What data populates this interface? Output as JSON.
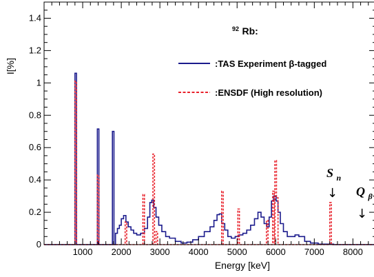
{
  "chart_data": {
    "type": "line",
    "xlabel": "Energy [keV]",
    "ylabel": "I[%]",
    "xlim": [
      0,
      8600
    ],
    "ylim": [
      0,
      1.5
    ],
    "x_ticks": [
      1000,
      2000,
      3000,
      4000,
      5000,
      6000,
      7000,
      8000
    ],
    "y_ticks": [
      0,
      0.2,
      0.4,
      0.6,
      0.8,
      1,
      1.2,
      1.4
    ],
    "x_tick_labels": [
      "1000",
      "2000",
      "3000",
      "4000",
      "5000",
      "6000",
      "7000",
      "8000"
    ],
    "y_tick_labels": [
      "0",
      "0.2",
      "0.4",
      "0.6",
      "0.8",
      "1",
      "1.2",
      "1.4"
    ],
    "legend": {
      "header_mass": "92",
      "header_element": "Rb:",
      "entries": [
        {
          "label": ":TAS Experiment β-tagged",
          "color": "#1a1a8c",
          "style": "solid"
        },
        {
          "label": ":ENSDF (High resolution)",
          "color": "#e8202a",
          "style": "dashed"
        }
      ]
    },
    "annotations": [
      {
        "text": "S",
        "sub": "n",
        "x": 7390
      },
      {
        "text": "Q",
        "sub": "β",
        "x": 8150
      }
    ],
    "series": [
      {
        "name": ":TAS Experiment β-tagged",
        "color": "#1a1a8c",
        "bin_width": 40,
        "points": [
          [
            0,
            0
          ],
          [
            760,
            0
          ],
          [
            800,
            1.06
          ],
          [
            840,
            0
          ],
          [
            1330,
            0
          ],
          [
            1380,
            0.715
          ],
          [
            1420,
            0
          ],
          [
            1720,
            0
          ],
          [
            1770,
            0.7
          ],
          [
            1810,
            0
          ],
          [
            1850,
            0.07
          ],
          [
            1900,
            0.1
          ],
          [
            1950,
            0.12
          ],
          [
            2000,
            0.16
          ],
          [
            2060,
            0.18
          ],
          [
            2120,
            0.14
          ],
          [
            2180,
            0.11
          ],
          [
            2250,
            0.09
          ],
          [
            2320,
            0.07
          ],
          [
            2400,
            0.06
          ],
          [
            2500,
            0.07
          ],
          [
            2600,
            0.1
          ],
          [
            2680,
            0.17
          ],
          [
            2740,
            0.26
          ],
          [
            2790,
            0.275
          ],
          [
            2840,
            0.23
          ],
          [
            2900,
            0.17
          ],
          [
            2970,
            0.12
          ],
          [
            3050,
            0.08
          ],
          [
            3150,
            0.05
          ],
          [
            3250,
            0.04
          ],
          [
            3400,
            0.02
          ],
          [
            3550,
            0.01
          ],
          [
            3700,
            0.015
          ],
          [
            3850,
            0.03
          ],
          [
            4000,
            0.05
          ],
          [
            4150,
            0.08
          ],
          [
            4300,
            0.11
          ],
          [
            4400,
            0.15
          ],
          [
            4480,
            0.185
          ],
          [
            4540,
            0.19
          ],
          [
            4600,
            0.13
          ],
          [
            4680,
            0.09
          ],
          [
            4760,
            0.05
          ],
          [
            4850,
            0.04
          ],
          [
            4950,
            0.05
          ],
          [
            5050,
            0.06
          ],
          [
            5150,
            0.07
          ],
          [
            5250,
            0.09
          ],
          [
            5350,
            0.12
          ],
          [
            5450,
            0.16
          ],
          [
            5540,
            0.2
          ],
          [
            5620,
            0.17
          ],
          [
            5700,
            0.13
          ],
          [
            5770,
            0.11
          ],
          [
            5830,
            0.17
          ],
          [
            5890,
            0.27
          ],
          [
            5950,
            0.3
          ],
          [
            6010,
            0.27
          ],
          [
            6060,
            0.2
          ],
          [
            6120,
            0.13
          ],
          [
            6200,
            0.08
          ],
          [
            6300,
            0.05
          ],
          [
            6400,
            0.05
          ],
          [
            6500,
            0.06
          ],
          [
            6600,
            0.05
          ],
          [
            6750,
            0.02
          ],
          [
            6900,
            0.01
          ],
          [
            7100,
            0.003
          ],
          [
            7500,
            0
          ],
          [
            8600,
            0
          ]
        ]
      },
      {
        "name": ":ENSDF (High resolution)",
        "color": "#e8202a",
        "bin_width": 40,
        "points": [
          [
            0,
            0
          ],
          [
            760,
            0
          ],
          [
            800,
            1.01
          ],
          [
            840,
            0
          ],
          [
            1340,
            0
          ],
          [
            1380,
            0.43
          ],
          [
            1420,
            0
          ],
          [
            2060,
            0
          ],
          [
            2100,
            0.14
          ],
          [
            2140,
            0
          ],
          [
            2520,
            0
          ],
          [
            2560,
            0.31
          ],
          [
            2600,
            0
          ],
          [
            2780,
            0
          ],
          [
            2820,
            0.56
          ],
          [
            2860,
            0
          ],
          [
            2900,
            0.08
          ],
          [
            2940,
            0
          ],
          [
            4560,
            0
          ],
          [
            4600,
            0.33
          ],
          [
            4640,
            0
          ],
          [
            4980,
            0
          ],
          [
            5020,
            0.22
          ],
          [
            5060,
            0
          ],
          [
            5720,
            0
          ],
          [
            5760,
            0.15
          ],
          [
            5800,
            0
          ],
          [
            5880,
            0
          ],
          [
            5920,
            0.33
          ],
          [
            5960,
            0
          ],
          [
            5980,
            0.52
          ],
          [
            6020,
            0.29
          ],
          [
            6060,
            0
          ],
          [
            7360,
            0
          ],
          [
            7400,
            0.26
          ],
          [
            7440,
            0
          ],
          [
            8600,
            0
          ]
        ]
      }
    ]
  }
}
